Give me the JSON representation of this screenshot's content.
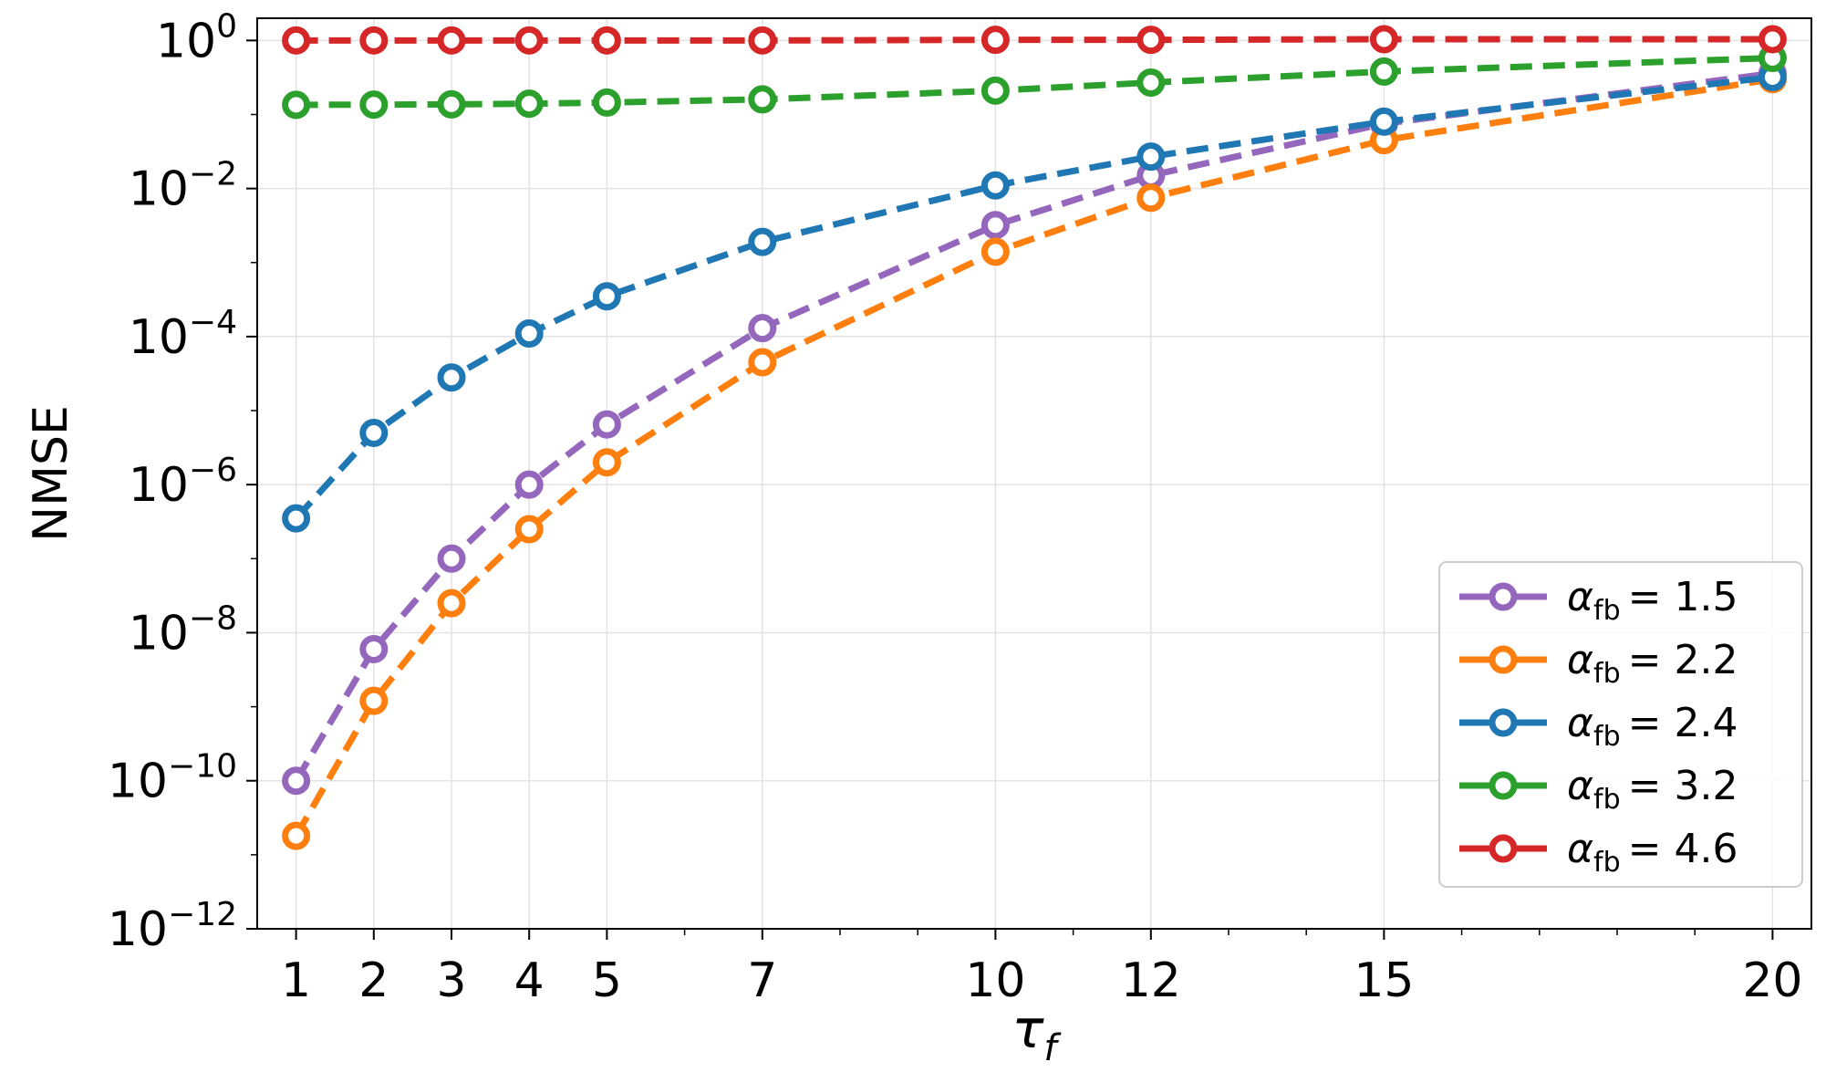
{
  "chart_data": {
    "type": "line",
    "xlabel": "τ_f",
    "ylabel": "NMSE",
    "yscale": "log",
    "ylim_exponent": [
      -12,
      0.3
    ],
    "xlim": [
      0.5,
      20.5
    ],
    "grid": true,
    "legend_position": "lower-right",
    "x": [
      1,
      2,
      3,
      4,
      5,
      7,
      10,
      12,
      15,
      20
    ],
    "x_ticks": [
      "1",
      "2",
      "3",
      "4",
      "5",
      "7",
      "10",
      "12",
      "15",
      "20"
    ],
    "y_ticks": [
      {
        "base": "10",
        "exp": "0",
        "value": 0
      },
      {
        "base": "10",
        "exp": "−2",
        "value": -2
      },
      {
        "base": "10",
        "exp": "−4",
        "value": -4
      },
      {
        "base": "10",
        "exp": "−6",
        "value": -6
      },
      {
        "base": "10",
        "exp": "−8",
        "value": -8
      },
      {
        "base": "10",
        "exp": "−10",
        "value": -10
      },
      {
        "base": "10",
        "exp": "−12",
        "value": -12
      }
    ],
    "series": [
      {
        "name": "α_fb = 1.5",
        "label_prefix": "α",
        "label_sub": "fb",
        "label_value": "= 1.5",
        "color": "#9467bd",
        "values": [
          1e-10,
          6e-09,
          1e-07,
          1e-06,
          6.5e-06,
          0.00013,
          0.0032,
          0.015,
          0.075,
          0.36
        ]
      },
      {
        "name": "α_fb = 2.2",
        "label_prefix": "α",
        "label_sub": "fb",
        "label_value": "= 2.2",
        "color": "#ff7f0e",
        "values": [
          1.8e-11,
          1.2e-09,
          2.5e-08,
          2.5e-07,
          2e-06,
          4.5e-05,
          0.0014,
          0.0075,
          0.045,
          0.3
        ]
      },
      {
        "name": "α_fb = 2.4",
        "label_prefix": "α",
        "label_sub": "fb",
        "label_value": "= 2.4",
        "color": "#1f77b4",
        "values": [
          3.5e-07,
          5e-06,
          2.8e-05,
          0.00011,
          0.00035,
          0.0019,
          0.011,
          0.027,
          0.08,
          0.32
        ]
      },
      {
        "name": "α_fb = 3.2",
        "label_prefix": "α",
        "label_sub": "fb",
        "label_value": "= 3.2",
        "color": "#2ca02c",
        "values": [
          0.135,
          0.136,
          0.137,
          0.14,
          0.145,
          0.16,
          0.21,
          0.27,
          0.38,
          0.58
        ]
      },
      {
        "name": "α_fb = 4.6",
        "label_prefix": "α",
        "label_sub": "fb",
        "label_value": "= 4.6",
        "color": "#d62728",
        "values": [
          1.0,
          1.0,
          1.0,
          1.0,
          1.0,
          1.0,
          1.02,
          1.02,
          1.04,
          1.04
        ]
      }
    ]
  }
}
